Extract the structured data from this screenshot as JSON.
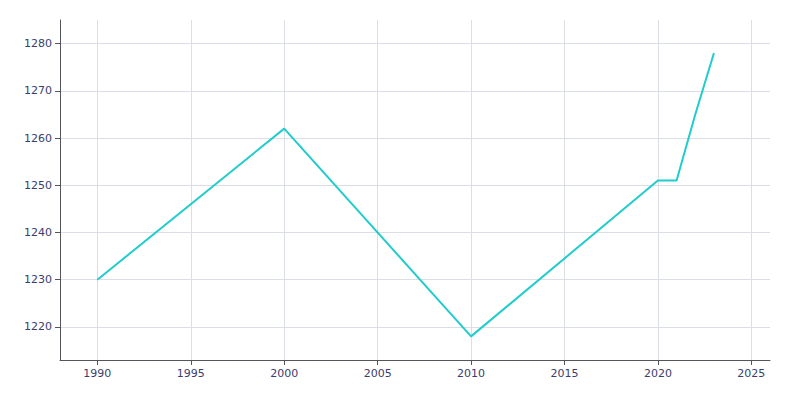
{
  "chart_data": {
    "type": "line",
    "x": [
      1990,
      2000,
      2010,
      2020,
      2021,
      2022,
      2023
    ],
    "values": [
      1230,
      1262,
      1218,
      1251,
      1251,
      1265,
      1278
    ],
    "color": "#22CCCC",
    "xlim": [
      1988,
      2026
    ],
    "ylim": [
      1213,
      1285
    ],
    "xticks": [
      1990,
      1995,
      2000,
      2005,
      2010,
      2015,
      2020,
      2025
    ],
    "yticks": [
      1220,
      1230,
      1240,
      1250,
      1260,
      1270,
      1280
    ],
    "grid": true
  }
}
